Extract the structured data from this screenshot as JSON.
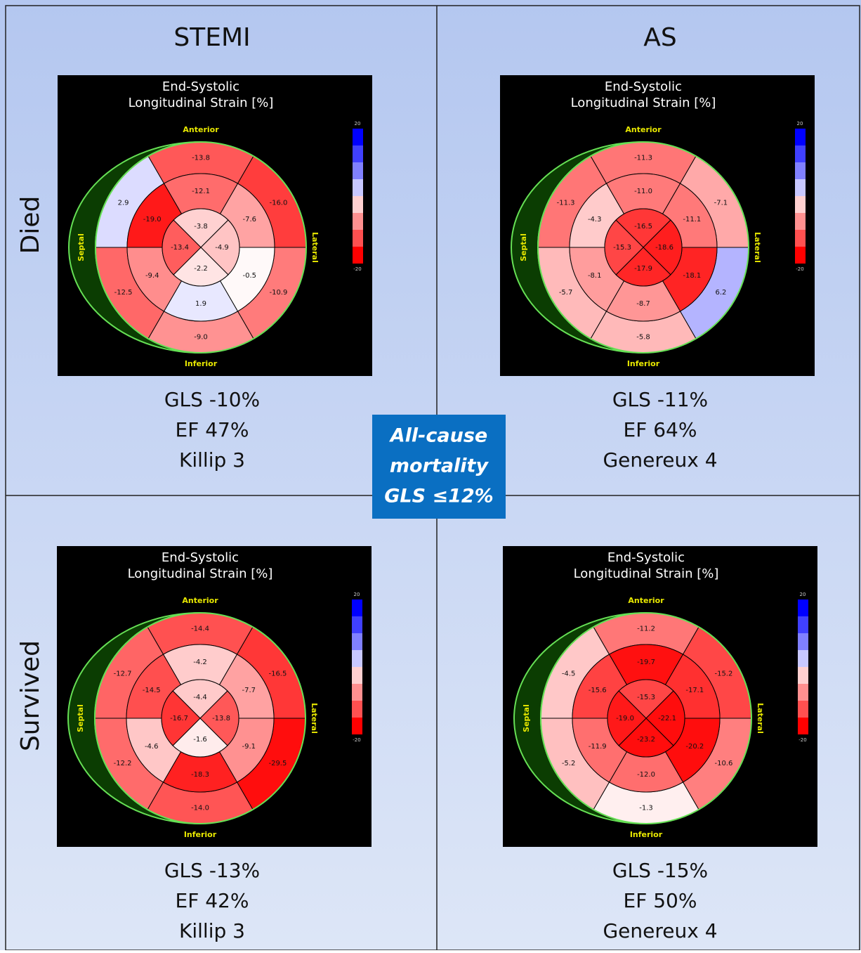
{
  "columns": [
    "STEMI",
    "AS"
  ],
  "rows": [
    "Died",
    "Survived"
  ],
  "center_box": [
    "All-cause",
    "mortality",
    "GLS ≤12%"
  ],
  "panels": [
    {
      "title": [
        "End-Systolic",
        "Longitudinal Strain [%]"
      ],
      "anterior": "Anterior",
      "inferior": "Inferior",
      "septal": "Septal",
      "lateral": "Lateral",
      "scale": [
        "20",
        "-20"
      ],
      "basal": [
        "-13.8",
        "-16.0",
        "-10.9",
        "-9.0",
        "-12.5",
        "2.9"
      ],
      "mid": [
        "-12.1",
        "-7.6",
        "-0.5",
        "1.9",
        "-9.4",
        "-19.0"
      ],
      "apical": [
        "-3.8",
        "-4.9",
        "-2.2",
        "-13.4"
      ],
      "stats": [
        "GLS -10%",
        "EF 47%",
        "Killip 3"
      ]
    },
    {
      "title": [
        "End-Systolic",
        "Longitudinal Strain [%]"
      ],
      "anterior": "Anterior",
      "inferior": "Inferior",
      "septal": "Septal",
      "lateral": "Lateral",
      "scale": [
        "20",
        "-20"
      ],
      "basal": [
        "-11.3",
        "-7.1",
        "6.2",
        "-5.8",
        "-5.7",
        "-11.3"
      ],
      "mid": [
        "-11.0",
        "-11.1",
        "-18.1",
        "-8.7",
        "-8.1",
        "-4.3"
      ],
      "apical": [
        "-16.5",
        "-18.6",
        "-17.9",
        "-15.3"
      ],
      "stats": [
        "GLS -11%",
        "EF 64%",
        "Genereux 4"
      ]
    },
    {
      "title": [
        "End-Systolic",
        "Longitudinal Strain [%]"
      ],
      "anterior": "Anterior",
      "inferior": "Inferior",
      "septal": "Septal",
      "lateral": "Lateral",
      "scale": [
        "20",
        "-20"
      ],
      "basal": [
        "-14.4",
        "-16.5",
        "-29.5",
        "-14.0",
        "-12.2",
        "-12.7"
      ],
      "mid": [
        "-4.2",
        "-7.7",
        "-9.1",
        "-18.3",
        "-4.6",
        "-14.5"
      ],
      "apical": [
        "-4.4",
        "-13.8",
        "-1.6",
        "-16.7"
      ],
      "stats": [
        "GLS -13%",
        "EF 42%",
        "Killip 3"
      ]
    },
    {
      "title": [
        "End-Systolic",
        "Longitudinal Strain [%]"
      ],
      "anterior": "Anterior",
      "inferior": "Inferior",
      "septal": "Septal",
      "lateral": "Lateral",
      "scale": [
        "20",
        "-20"
      ],
      "basal": [
        "-11.2",
        "-15.2",
        "-10.6",
        "-1.3",
        "-5.2",
        "-4.5"
      ],
      "mid": [
        "-19.7",
        "-17.1",
        "-20.2",
        "-12.0",
        "-11.9",
        "-15.6"
      ],
      "apical": [
        "-15.3",
        "-22.1",
        "-23.2",
        "-19.0"
      ],
      "stats": [
        "GLS -15%",
        "EF 50%",
        "Genereux 4"
      ]
    }
  ]
}
